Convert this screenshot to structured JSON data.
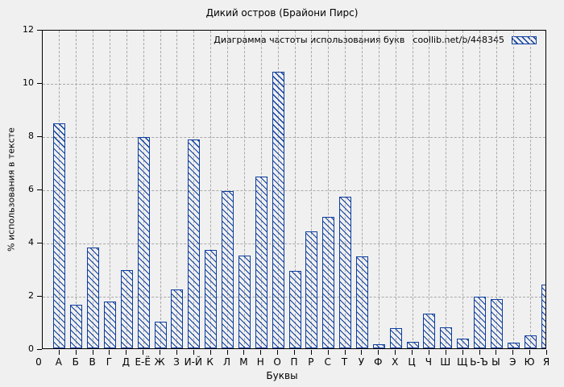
{
  "chart_data": {
    "type": "bar",
    "title": "Дикий остров (Брайони Пирс)",
    "xlabel": "Буквы",
    "ylabel": "% использования в тексте",
    "legend_label": "Диаграмма частоты использования букв",
    "legend_source": "coollib.net/b/448345",
    "legend_position": "top-right",
    "x_origin_label": "0",
    "categories": [
      "А",
      "Б",
      "В",
      "Г",
      "Д",
      "Е-Ё",
      "Ж",
      "З",
      "И-Й",
      "К",
      "Л",
      "М",
      "Н",
      "О",
      "П",
      "Р",
      "С",
      "Т",
      "У",
      "Ф",
      "Х",
      "Ц",
      "Ч",
      "Ш",
      "Щ",
      "Ь-Ъ",
      "Ы",
      "Э",
      "Ю",
      "Я"
    ],
    "values": [
      8.45,
      1.65,
      3.8,
      1.75,
      2.95,
      7.95,
      1.0,
      2.2,
      7.85,
      3.7,
      5.9,
      3.5,
      6.45,
      10.4,
      2.9,
      4.4,
      4.95,
      5.7,
      3.45,
      0.15,
      0.75,
      0.25,
      1.3,
      0.8,
      0.35,
      1.95,
      1.85,
      0.2,
      0.5,
      2.4
    ],
    "ylim": [
      0,
      12
    ],
    "yticks": [
      0,
      2,
      4,
      6,
      8,
      10,
      12
    ],
    "grid": true,
    "bar_color": "#0d3e9e",
    "grid_color": "#a9a9a9",
    "background_color": "#f0f0f0"
  }
}
